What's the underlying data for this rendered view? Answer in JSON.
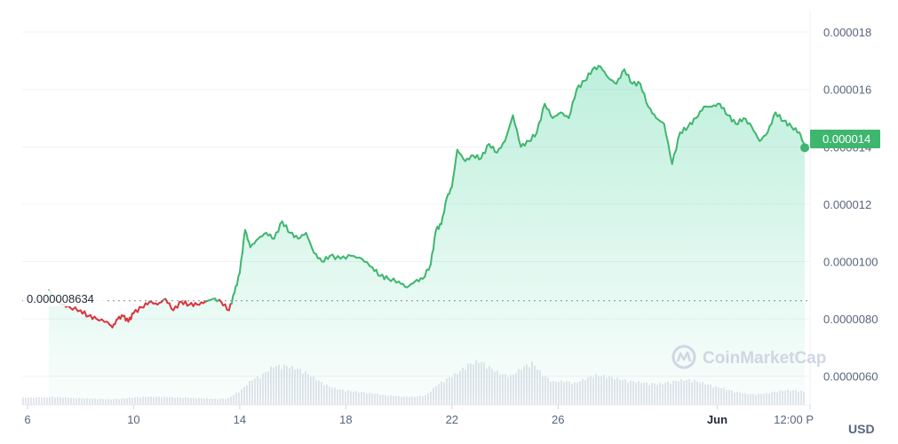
{
  "chart_data": {
    "type": "area",
    "title": "",
    "xlabel": "",
    "ylabel": "",
    "currency_unit": "USD",
    "ylim": [
      5e-06,
      1.85e-05
    ],
    "y_ticks": [
      "0.000018",
      "0.000016",
      "0.000014",
      "0.000012",
      "0.0000100",
      "0.0000080",
      "0.0000060"
    ],
    "y_tick_values": [
      1.8e-05,
      1.6e-05,
      1.4e-05,
      1.2e-05,
      1e-05,
      8e-06,
      6e-06
    ],
    "x_ticks": [
      "6",
      "10",
      "14",
      "18",
      "22",
      "26",
      "Jun",
      "12:00 P"
    ],
    "x_tick_days": [
      6,
      10,
      14,
      18,
      22,
      26,
      32,
      35.5
    ],
    "x_range_days": [
      5.8,
      35.5
    ],
    "baseline": {
      "value": 8.634e-06,
      "label": "0.000008634"
    },
    "current_price": {
      "value": 1.4e-05,
      "label": "0.000014"
    },
    "colors": {
      "up": "#16c784",
      "down": "#ea3943",
      "line_up": "#3fb66e",
      "line_down": "#d9363e",
      "tag": "#3fb66e"
    },
    "grid": true,
    "watermark": "CoinMarketCap",
    "series": [
      {
        "values": [
          [
            6.8,
            9e-06
          ],
          [
            7.0,
            8.7e-06
          ],
          [
            7.3,
            8.5e-06
          ],
          [
            7.6,
            8.4e-06
          ],
          [
            8.0,
            8.3e-06
          ],
          [
            8.3,
            8.1e-06
          ],
          [
            8.6,
            8e-06
          ],
          [
            9.0,
            7.9e-06
          ],
          [
            9.2,
            7.7e-06
          ],
          [
            9.4,
            8e-06
          ],
          [
            9.6,
            8.1e-06
          ],
          [
            9.8,
            7.9e-06
          ],
          [
            10.0,
            8.2e-06
          ],
          [
            10.3,
            8.4e-06
          ],
          [
            10.6,
            8.6e-06
          ],
          [
            10.9,
            8.5e-06
          ],
          [
            11.2,
            8.7e-06
          ],
          [
            11.5,
            8.3e-06
          ],
          [
            11.8,
            8.6e-06
          ],
          [
            12.1,
            8.5e-06
          ],
          [
            12.4,
            8.5e-06
          ],
          [
            12.7,
            8.6e-06
          ],
          [
            13.0,
            8.7e-06
          ],
          [
            13.3,
            8.6e-06
          ],
          [
            13.6,
            8.3e-06
          ],
          [
            13.8,
            8.9e-06
          ],
          [
            14.0,
            9.6e-06
          ],
          [
            14.2,
            1.11e-05
          ],
          [
            14.4,
            1.05e-05
          ],
          [
            14.7,
            1.08e-05
          ],
          [
            15.0,
            1.1e-05
          ],
          [
            15.3,
            1.08e-05
          ],
          [
            15.6,
            1.14e-05
          ],
          [
            15.9,
            1.1e-05
          ],
          [
            16.2,
            1.08e-05
          ],
          [
            16.5,
            1.1e-05
          ],
          [
            16.8,
            1.03e-05
          ],
          [
            17.1,
            1e-05
          ],
          [
            17.4,
            1.02e-05
          ],
          [
            17.8,
            1.01e-05
          ],
          [
            18.2,
            1.02e-05
          ],
          [
            18.6,
            1.01e-05
          ],
          [
            19.0,
            9.8e-06
          ],
          [
            19.3,
            9.5e-06
          ],
          [
            19.6,
            9.4e-06
          ],
          [
            20.0,
            9.3e-06
          ],
          [
            20.3,
            9.1e-06
          ],
          [
            20.6,
            9.3e-06
          ],
          [
            20.9,
            9.4e-06
          ],
          [
            21.2,
            9.9e-06
          ],
          [
            21.4,
            1.11e-05
          ],
          [
            21.6,
            1.13e-05
          ],
          [
            21.8,
            1.22e-05
          ],
          [
            22.0,
            1.26e-05
          ],
          [
            22.2,
            1.39e-05
          ],
          [
            22.5,
            1.35e-05
          ],
          [
            22.8,
            1.37e-05
          ],
          [
            23.1,
            1.36e-05
          ],
          [
            23.4,
            1.41e-05
          ],
          [
            23.7,
            1.38e-05
          ],
          [
            24.0,
            1.42e-05
          ],
          [
            24.3,
            1.51e-05
          ],
          [
            24.6,
            1.4e-05
          ],
          [
            24.9,
            1.42e-05
          ],
          [
            25.2,
            1.45e-05
          ],
          [
            25.5,
            1.55e-05
          ],
          [
            25.8,
            1.5e-05
          ],
          [
            26.1,
            1.52e-05
          ],
          [
            26.4,
            1.5e-05
          ],
          [
            26.7,
            1.6e-05
          ],
          [
            27.0,
            1.63e-05
          ],
          [
            27.3,
            1.67e-05
          ],
          [
            27.6,
            1.68e-05
          ],
          [
            27.9,
            1.64e-05
          ],
          [
            28.2,
            1.62e-05
          ],
          [
            28.5,
            1.67e-05
          ],
          [
            28.8,
            1.62e-05
          ],
          [
            29.1,
            1.62e-05
          ],
          [
            29.4,
            1.54e-05
          ],
          [
            29.7,
            1.5e-05
          ],
          [
            30.0,
            1.48e-05
          ],
          [
            30.3,
            1.34e-05
          ],
          [
            30.6,
            1.45e-05
          ],
          [
            30.9,
            1.47e-05
          ],
          [
            31.2,
            1.5e-05
          ],
          [
            31.5,
            1.54e-05
          ],
          [
            31.8,
            1.54e-05
          ],
          [
            32.1,
            1.55e-05
          ],
          [
            32.4,
            1.51e-05
          ],
          [
            32.7,
            1.48e-05
          ],
          [
            33.0,
            1.5e-05
          ],
          [
            33.3,
            1.47e-05
          ],
          [
            33.6,
            1.42e-05
          ],
          [
            33.9,
            1.45e-05
          ],
          [
            34.2,
            1.52e-05
          ],
          [
            34.5,
            1.49e-05
          ],
          [
            34.8,
            1.47e-05
          ],
          [
            35.1,
            1.45e-05
          ],
          [
            35.3,
            1.4e-05
          ]
        ]
      }
    ],
    "volume": [
      [
        5.8,
        0.15
      ],
      [
        6.5,
        0.16
      ],
      [
        7.0,
        0.17
      ],
      [
        7.5,
        0.15
      ],
      [
        8.0,
        0.14
      ],
      [
        8.5,
        0.13
      ],
      [
        9.0,
        0.12
      ],
      [
        9.5,
        0.13
      ],
      [
        10.0,
        0.16
      ],
      [
        10.5,
        0.17
      ],
      [
        11.0,
        0.17
      ],
      [
        11.5,
        0.16
      ],
      [
        12.0,
        0.15
      ],
      [
        12.5,
        0.14
      ],
      [
        13.0,
        0.13
      ],
      [
        13.5,
        0.13
      ],
      [
        14.0,
        0.3
      ],
      [
        14.4,
        0.52
      ],
      [
        14.8,
        0.62
      ],
      [
        15.2,
        0.8
      ],
      [
        15.6,
        0.82
      ],
      [
        16.0,
        0.78
      ],
      [
        16.4,
        0.7
      ],
      [
        16.8,
        0.55
      ],
      [
        17.2,
        0.42
      ],
      [
        17.6,
        0.34
      ],
      [
        18.0,
        0.3
      ],
      [
        18.5,
        0.27
      ],
      [
        19.0,
        0.24
      ],
      [
        19.5,
        0.2
      ],
      [
        20.0,
        0.18
      ],
      [
        20.5,
        0.17
      ],
      [
        21.0,
        0.2
      ],
      [
        21.4,
        0.42
      ],
      [
        21.8,
        0.55
      ],
      [
        22.2,
        0.68
      ],
      [
        22.6,
        0.85
      ],
      [
        23.0,
        0.92
      ],
      [
        23.4,
        0.78
      ],
      [
        23.8,
        0.65
      ],
      [
        24.2,
        0.6
      ],
      [
        24.6,
        0.78
      ],
      [
        25.0,
        0.88
      ],
      [
        25.4,
        0.62
      ],
      [
        25.8,
        0.48
      ],
      [
        26.2,
        0.5
      ],
      [
        26.6,
        0.45
      ],
      [
        27.0,
        0.55
      ],
      [
        27.4,
        0.62
      ],
      [
        27.8,
        0.6
      ],
      [
        28.2,
        0.55
      ],
      [
        28.6,
        0.5
      ],
      [
        29.0,
        0.48
      ],
      [
        29.4,
        0.45
      ],
      [
        29.8,
        0.44
      ],
      [
        30.2,
        0.48
      ],
      [
        30.6,
        0.52
      ],
      [
        31.0,
        0.52
      ],
      [
        31.4,
        0.46
      ],
      [
        31.8,
        0.4
      ],
      [
        32.2,
        0.35
      ],
      [
        32.6,
        0.28
      ],
      [
        33.0,
        0.24
      ],
      [
        33.4,
        0.22
      ],
      [
        33.8,
        0.24
      ],
      [
        34.2,
        0.28
      ],
      [
        34.6,
        0.31
      ],
      [
        35.0,
        0.3
      ],
      [
        35.3,
        0.27
      ]
    ]
  }
}
